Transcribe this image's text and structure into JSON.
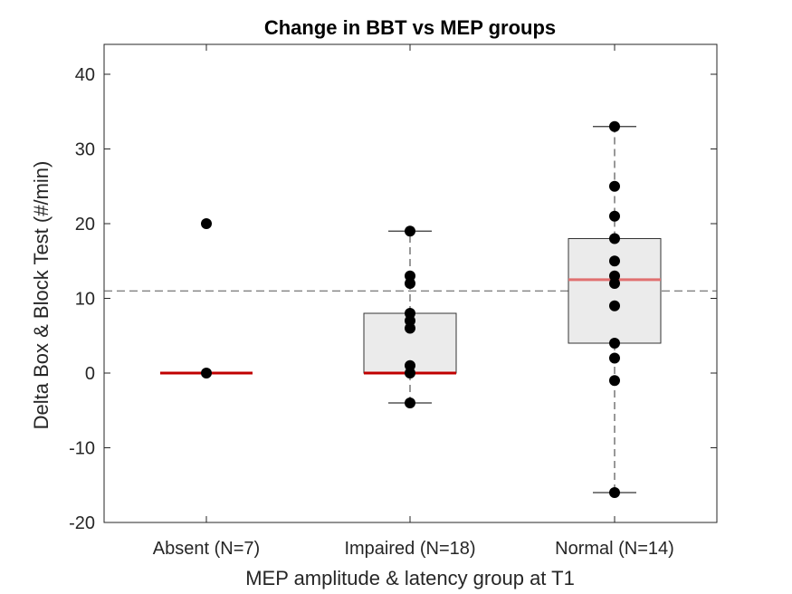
{
  "chart_data": {
    "type": "box",
    "title": "Change in BBT vs MEP groups",
    "xlabel": "MEP amplitude & latency group at T1",
    "ylabel": "Delta Box & Block Test (#/min)",
    "ylim": [
      -20,
      44
    ],
    "yticks": [
      -20,
      -10,
      0,
      10,
      20,
      30,
      40
    ],
    "reference_line": 11,
    "categories": [
      "Absent (N=7)",
      "Impaired (N=18)",
      "Normal (N=14)"
    ],
    "boxes": [
      {
        "q1": 0,
        "median": 0,
        "q3": 0,
        "whisker_low": 0,
        "whisker_high": 0,
        "median_color": "#c00000"
      },
      {
        "q1": 0,
        "median": 0,
        "q3": 8,
        "whisker_low": -4,
        "whisker_high": 19,
        "median_color": "#c00000"
      },
      {
        "q1": 4,
        "median": 12.5,
        "q3": 18,
        "whisker_low": -16,
        "whisker_high": 33,
        "median_color": "#e07070"
      }
    ],
    "points": [
      [
        20,
        0
      ],
      [
        19,
        13,
        12,
        8,
        7,
        6,
        1,
        0,
        -4
      ],
      [
        33,
        25,
        21,
        18,
        15,
        13,
        12,
        9,
        4,
        2,
        -1,
        -16
      ]
    ],
    "box_fill": "#ebebeb",
    "point_color": "#000000"
  }
}
